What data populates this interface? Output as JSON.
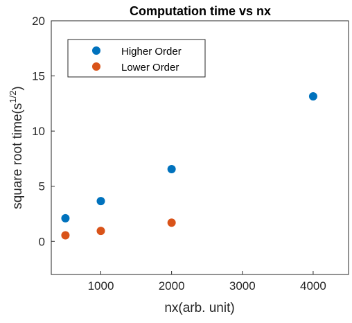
{
  "chart_data": {
    "type": "scatter",
    "title": "Computation time vs nx",
    "xlabel": "nx(arb. unit)",
    "ylabel_main": "square root time(s",
    "ylabel_sup": "1/2",
    "ylabel_close": ")",
    "xlim": [
      300,
      4500
    ],
    "ylim": [
      -3,
      20
    ],
    "xticks": [
      1000,
      2000,
      3000,
      4000
    ],
    "yticks": [
      0,
      5,
      10,
      15,
      20
    ],
    "legend_position": "top-left",
    "series": [
      {
        "name": "Higher Order",
        "color": "#0072BD",
        "x": [
          500,
          1000,
          2000,
          4000
        ],
        "y": [
          2.1,
          3.65,
          6.55,
          13.15
        ]
      },
      {
        "name": "Lower Order",
        "color": "#D95319",
        "x": [
          500,
          1000,
          2000
        ],
        "y": [
          0.55,
          0.95,
          1.7
        ]
      }
    ]
  }
}
